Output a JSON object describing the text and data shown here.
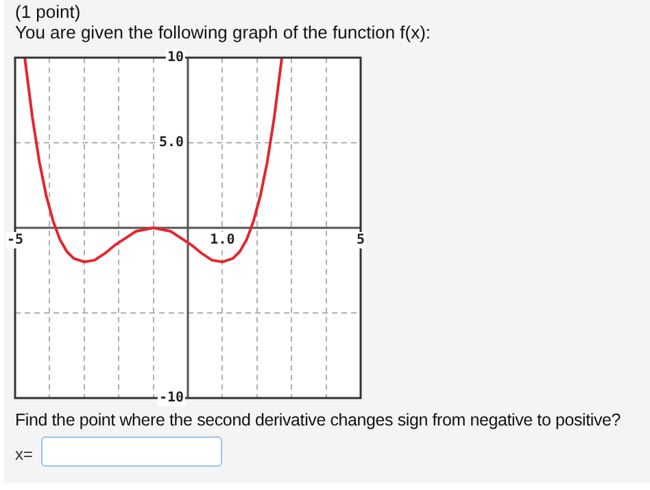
{
  "chart_data": {
    "type": "line",
    "title": "(1 point)",
    "subtitle": "You are given the following graph of the function f(x):",
    "annotations": [
      "Find the point where the second derivative changes sign from negative to positive?",
      "x="
    ],
    "x": [
      -4.72,
      -4.5,
      -4.3,
      -4.1,
      -3.9,
      -3.7,
      -3.5,
      -3.3,
      -3,
      -2.7,
      -2.4,
      -2.1,
      -1.8,
      -1.5,
      -1.25,
      -1,
      -0.75,
      -0.5,
      -0.2,
      0.1,
      0.4,
      0.7,
      1,
      1.3,
      1.5,
      1.7,
      1.9,
      2.1,
      2.3,
      2.5,
      2.72
    ],
    "series": [
      {
        "color": "#e3262d",
        "values": [
          10,
          6.5,
          3.9,
          1.9,
          0.4,
          -0.7,
          -1.4,
          -1.8,
          -2,
          -1.9,
          -1.5,
          -1.0,
          -0.6,
          -0.2,
          -0.1,
          0,
          -0.1,
          -0.2,
          -0.6,
          -1.0,
          -1.5,
          -1.9,
          -2,
          -1.8,
          -1.4,
          -0.7,
          0.4,
          1.9,
          3.9,
          6.5,
          10
        ]
      }
    ],
    "xlim": [
      -5,
      5
    ],
    "ylim": [
      -10,
      10
    ],
    "xticks": [
      {
        "value": -5,
        "label": "-5"
      },
      {
        "value": -4,
        "label": null
      },
      {
        "value": -3,
        "label": null
      },
      {
        "value": -2,
        "label": null
      },
      {
        "value": -1,
        "label": null
      },
      {
        "value": 0,
        "label": null
      },
      {
        "value": 1,
        "label": "1.0"
      },
      {
        "value": 2,
        "label": null
      },
      {
        "value": 3,
        "label": null
      },
      {
        "value": 4,
        "label": null
      },
      {
        "value": 5,
        "label": "5"
      }
    ],
    "yticks": [
      {
        "value": -10,
        "label": "-10"
      },
      {
        "value": -5,
        "label": null
      },
      {
        "value": 0,
        "label": null
      },
      {
        "value": 5,
        "label": "5.0"
      },
      {
        "value": 10,
        "label": "10"
      }
    ],
    "grid": true,
    "legend": false,
    "marker": "none"
  }
}
